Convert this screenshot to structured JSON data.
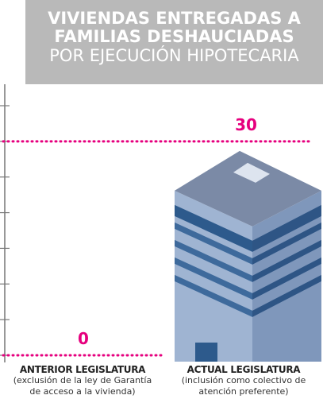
{
  "chart_data": {
    "type": "building-bar",
    "title": "VIVIENDAS ENTREGADAS A FAMILIAS DESHAUCIADAS",
    "subtitle": "POR EJECUCIÓN HIPOTECARIA",
    "categories": [
      "ANTERIOR LEGISLATURA",
      "ACTUAL LEGISLATURA"
    ],
    "category_notes": [
      "(exclusión de la ley de Garantía de acceso a la vivienda)",
      "(inclusión como colectivo de atención preferente)"
    ],
    "values": [
      0,
      30
    ],
    "color": "#e6007e",
    "ylim": [
      0,
      35
    ],
    "yticks": [
      0,
      5,
      10,
      15,
      20,
      25,
      30,
      35
    ]
  }
}
